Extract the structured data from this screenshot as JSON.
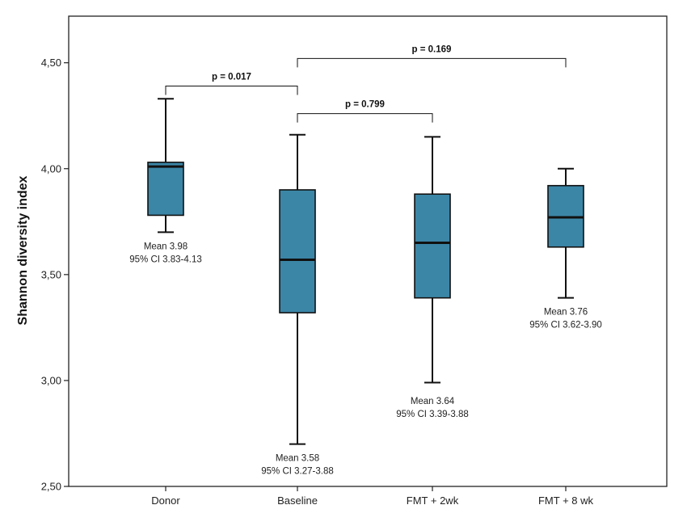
{
  "chart_data": {
    "type": "box",
    "title": "",
    "xlabel": "",
    "ylabel": "Shannon diversity index",
    "ylim": [
      2.5,
      4.72
    ],
    "yticks": [
      2.5,
      3.0,
      3.5,
      4.0,
      4.5
    ],
    "ytick_labels": [
      "2,50",
      "3,00",
      "3,50",
      "4,00",
      "4,50"
    ],
    "grid": false,
    "box_color": "#3b86a7",
    "categories": [
      "Donor",
      "Baseline",
      "FMT + 2wk",
      "FMT + 8 wk"
    ],
    "boxes": [
      {
        "whisker_low": 3.7,
        "q1": 3.78,
        "median": 4.01,
        "q3": 4.03,
        "whisker_high": 4.33
      },
      {
        "whisker_low": 2.7,
        "q1": 3.32,
        "median": 3.57,
        "q3": 3.9,
        "whisker_high": 4.16
      },
      {
        "whisker_low": 2.99,
        "q1": 3.39,
        "median": 3.65,
        "q3": 3.88,
        "whisker_high": 4.15
      },
      {
        "whisker_low": 3.39,
        "q1": 3.63,
        "median": 3.77,
        "q3": 3.92,
        "whisker_high": 4.0
      }
    ],
    "annotations": [
      {
        "category_index": 0,
        "y": 3.62,
        "mean": "Mean 3.98",
        "ci": "95% CI 3.83-4.13"
      },
      {
        "category_index": 1,
        "y": 2.62,
        "mean": "Mean 3.58",
        "ci": "95% CI 3.27-3.88"
      },
      {
        "category_index": 2,
        "y": 2.89,
        "mean": "Mean 3.64",
        "ci": "95% CI 3.39-3.88"
      },
      {
        "category_index": 3,
        "y": 3.31,
        "mean": "Mean 3.76",
        "ci": "95% CI 3.62-3.90"
      }
    ],
    "comparisons": [
      {
        "from": 0,
        "to": 1,
        "y": 4.39,
        "label": "p = 0.017"
      },
      {
        "from": 1,
        "to": 3,
        "y": 4.52,
        "label": "p = 0.169"
      },
      {
        "from": 1,
        "to": 2,
        "y": 4.26,
        "label": "p = 0.799"
      }
    ]
  }
}
